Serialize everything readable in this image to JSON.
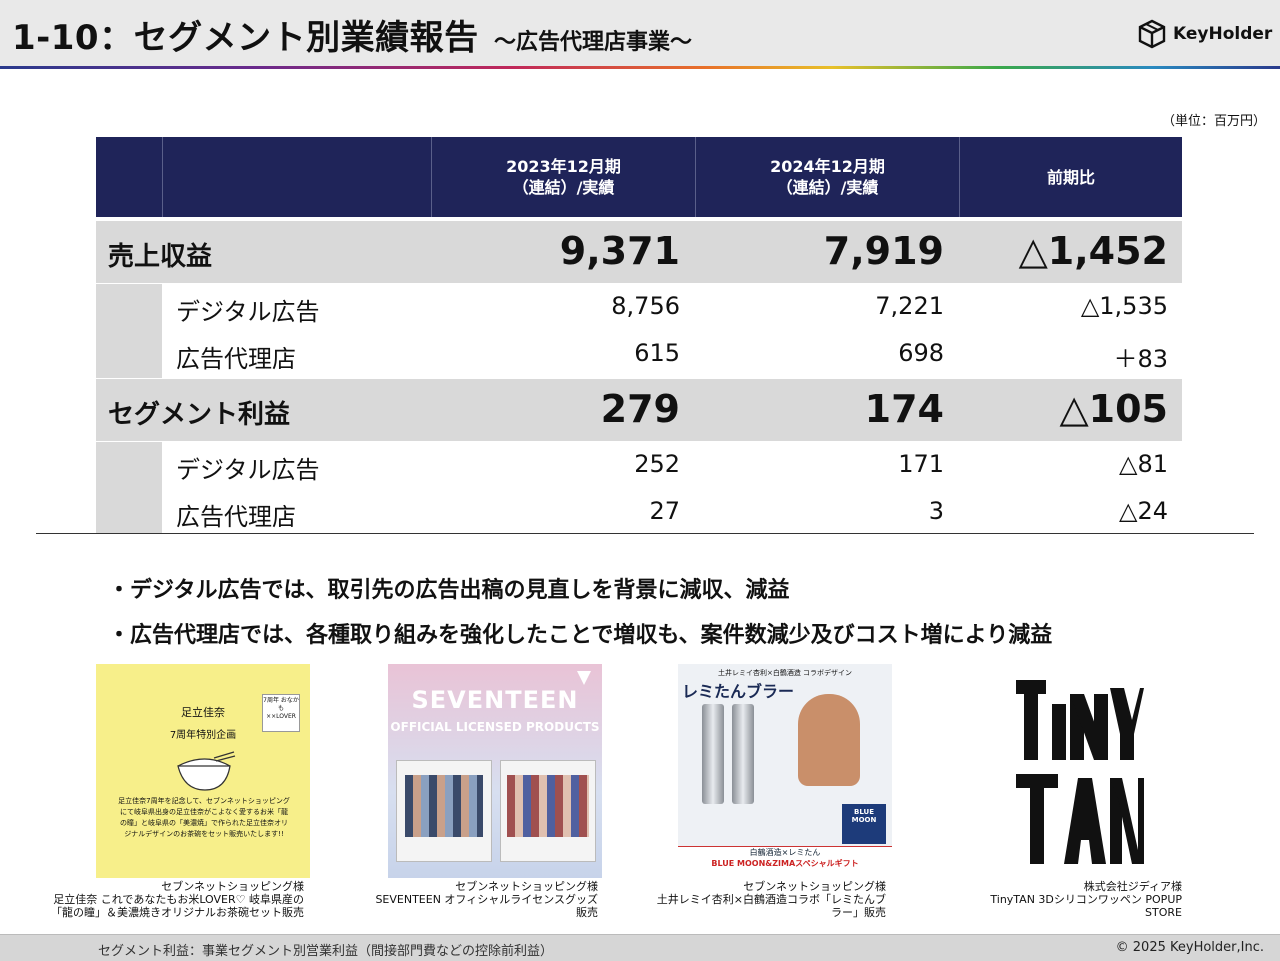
{
  "header": {
    "title": "1-10：セグメント別業績報告",
    "subtitle": "～広告代理店事業～",
    "logo_text": "KeyHolder"
  },
  "unit_note": "（単位：百万円）",
  "table": {
    "columns": [
      {
        "line1": "2023年12月期",
        "line2": "（連結）/実績"
      },
      {
        "line1": "2024年12月期",
        "line2": "（連結）/実績"
      },
      {
        "line1": "前期比",
        "line2": ""
      }
    ],
    "rows": [
      {
        "label": "売上収益",
        "values": [
          "9,371",
          "7,919",
          "△1,452"
        ]
      },
      {
        "label": "デジタル広告",
        "values": [
          "8,756",
          "7,221",
          "△1,535"
        ]
      },
      {
        "label": "広告代理店",
        "values": [
          "615",
          "698",
          "＋83"
        ]
      },
      {
        "label": "セグメント利益",
        "values": [
          "279",
          "174",
          "△105"
        ]
      },
      {
        "label": "デジタル広告",
        "values": [
          "252",
          "171",
          "△81"
        ]
      },
      {
        "label": "広告代理店",
        "values": [
          "27",
          "3",
          "△24"
        ]
      }
    ]
  },
  "bullets": [
    "・デジタル広告では、取引先の広告出稿の見直しを背景に減収、減益",
    "・広告代理店では、各種取り組みを強化したことで増収も、案件数減少及びコスト増により減益"
  ],
  "images": [
    {
      "heading": "足立佳奈",
      "subheading": "7周年特別企画",
      "badge": "7周年 おなかも ××LOVER",
      "body": "足立佳奈7周年を記念して、セブンネットショッピングにて岐阜県出身の足立佳奈がこよなく愛するお米「龍の瞳」と岐阜県の「美濃焼」で作られた足立佳奈オリジナルデザインのお茶碗をセット販売いたします!!",
      "caption": [
        "セブンネットショッピング様",
        "足立佳奈 これであなたもお米LOVER♡ 岐阜県産の",
        "「龍の瞳」＆美濃焼きオリジナルお茶碗セット販売"
      ]
    },
    {
      "heading": "SEVENTEEN",
      "subheading": "OFFICIAL LICENSED PRODUCTS",
      "caption": [
        "セブンネットショッピング様",
        "SEVENTEEN オフィシャルライセンスグッズ",
        "販売"
      ]
    },
    {
      "top_label": "土井レミイ杏利×白鶴酒造 コラボデザイン",
      "heading": "レミたんブラー",
      "banner1": "白鶴酒造×レミたん",
      "banner2": "BLUE MOON&ZIMAスペシャルギフト",
      "caption": [
        "セブンネットショッピング様",
        "土井レミイ杏利×白鶴酒造コラボ「レミたんブ",
        "ラー」販売"
      ]
    },
    {
      "heading": "TinyTAN",
      "caption": [
        "株式会社ジディア様",
        "TinyTAN 3Dシリコンワッペン POPUP",
        "STORE"
      ]
    }
  ],
  "footer": {
    "note": "セグメント利益：事業セグメント別営業利益（間接部門費などの控除前利益）",
    "copyright": "© 2025 KeyHolder,Inc."
  }
}
